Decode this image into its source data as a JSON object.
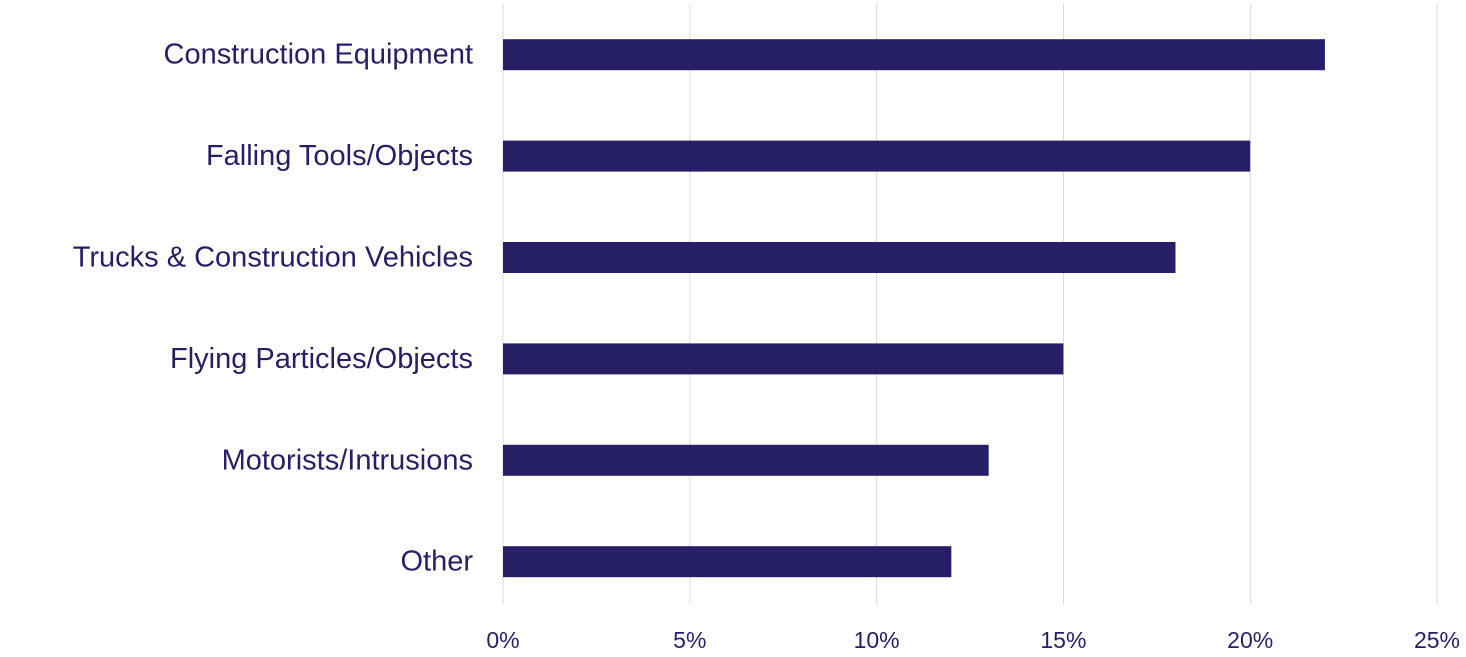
{
  "chart_data": {
    "type": "bar",
    "orientation": "horizontal",
    "title": "",
    "xlabel": "",
    "ylabel": "",
    "categories": [
      "Construction Equipment",
      "Falling Tools/Objects",
      "Trucks & Construction Vehicles",
      "Flying Particles/Objects",
      "Motorists/Intrusions",
      "Other"
    ],
    "values": [
      22,
      20,
      18,
      15,
      13,
      12
    ],
    "value_unit": "%",
    "xlim": [
      0,
      25
    ],
    "x_ticks": [
      0,
      5,
      10,
      15,
      20,
      25
    ],
    "x_tick_labels": [
      "0%",
      "5%",
      "10%",
      "15%",
      "20%",
      "25%"
    ],
    "grid": "vertical",
    "legend": "none"
  },
  "colors": {
    "bar": "#261e66",
    "text": "#261e66",
    "grid": "#d9d9d9"
  }
}
